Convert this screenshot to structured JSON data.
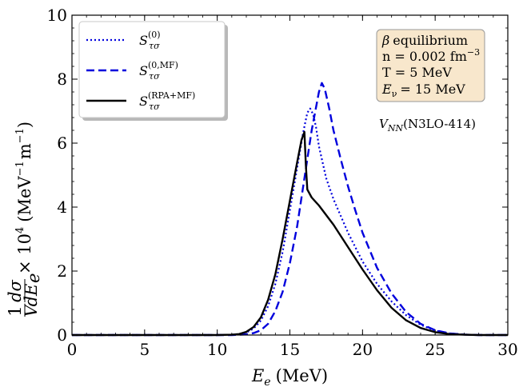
{
  "chart_data": {
    "type": "line",
    "xlabel_main": "E",
    "xlabel_sub": "e",
    "xlabel_unit": "(MeV)",
    "ylabel_frac1_num": "1",
    "ylabel_frac1_den": "V",
    "ylabel_frac2_num": "dσ",
    "ylabel_frac2_den": "dE",
    "ylabel_frac2_den_sub": "e",
    "ylabel_rest": "× 10",
    "ylabel_exp": "4",
    "ylabel_unit": "(MeV",
    "ylabel_unit_exp1": "−1",
    "ylabel_unit_mid": "m",
    "ylabel_unit_exp2": "−1",
    "ylabel_unit_close": ")",
    "xlim": [
      0,
      30
    ],
    "ylim": [
      0,
      10
    ],
    "x_ticks": [
      "0",
      "5",
      "10",
      "15",
      "20",
      "25",
      "30"
    ],
    "y_ticks": [
      "0",
      "2",
      "4",
      "6",
      "8",
      "10"
    ],
    "legend_position": "top-left",
    "series": [
      {
        "name": "S(0)τσ",
        "name_base": "S",
        "name_sup": "(0)",
        "name_sub": "τσ",
        "style": "dotted",
        "color": "#0000dd",
        "x": [
          0,
          10,
          11,
          11.5,
          12,
          12.5,
          13,
          13.5,
          14,
          14.5,
          15,
          15.3,
          15.6,
          15.9,
          16.2,
          16.4,
          16.6,
          16.8,
          17,
          17.5,
          18,
          19,
          20,
          21,
          22,
          23,
          24,
          25,
          26,
          27,
          28,
          30
        ],
        "y": [
          0,
          0,
          0.01,
          0.03,
          0.08,
          0.2,
          0.45,
          0.9,
          1.6,
          2.6,
          3.9,
          4.7,
          5.5,
          6.3,
          6.95,
          7.08,
          6.9,
          6.5,
          5.9,
          4.9,
          4.25,
          3.2,
          2.3,
          1.6,
          1.05,
          0.62,
          0.32,
          0.14,
          0.05,
          0.015,
          0,
          0
        ]
      },
      {
        "name": "S(0,MF)τσ",
        "name_base": "S",
        "name_sup": "(0,MF)",
        "name_sub": "τσ",
        "style": "dashed",
        "color": "#0000dd",
        "x": [
          0,
          11,
          12,
          12.5,
          13,
          13.5,
          14,
          14.5,
          15,
          15.5,
          16,
          16.5,
          17,
          17.2,
          17.4,
          17.7,
          18,
          18.5,
          19,
          19.5,
          20,
          21,
          22,
          23,
          24,
          25,
          26,
          27,
          28,
          30
        ],
        "y": [
          0,
          0,
          0.02,
          0.06,
          0.15,
          0.35,
          0.75,
          1.35,
          2.25,
          3.4,
          4.9,
          6.4,
          7.6,
          7.88,
          7.7,
          7.1,
          6.4,
          5.5,
          4.65,
          3.9,
          3.2,
          2.1,
          1.3,
          0.72,
          0.35,
          0.15,
          0.05,
          0.015,
          0,
          0
        ]
      },
      {
        "name": "S(RPA+MF)τσ",
        "name_base": "S",
        "name_sup": "(RPA+MF)",
        "name_sub": "τσ",
        "style": "solid",
        "color": "#000000",
        "x": [
          0,
          10,
          11,
          11.5,
          12,
          12.5,
          13,
          13.5,
          14,
          14.5,
          15,
          15.5,
          15.8,
          16,
          16.1,
          16.2,
          16.5,
          17,
          18,
          19,
          20,
          21,
          22,
          23,
          24,
          25,
          26,
          27,
          28,
          30
        ],
        "y": [
          0,
          0,
          0.01,
          0.03,
          0.1,
          0.25,
          0.55,
          1.1,
          1.9,
          3.0,
          4.2,
          5.4,
          6.1,
          6.35,
          5.3,
          4.55,
          4.3,
          4.05,
          3.45,
          2.75,
          2.05,
          1.4,
          0.85,
          0.46,
          0.22,
          0.09,
          0.03,
          0.01,
          0,
          0
        ]
      }
    ],
    "info_box": {
      "line1_symbol": "β",
      "line1_text": "equilibrium",
      "line2": "n = 0.002 fm",
      "line2_exp": "−3",
      "line3": "T = 5 MeV",
      "line4_main": "E",
      "line4_sub": "ν",
      "line4_rest": "= 15 MeV",
      "fill": "#f8e7cc"
    },
    "annotation": {
      "main": "V",
      "sub": "NN",
      "rest": "(N3LO-414)"
    }
  }
}
